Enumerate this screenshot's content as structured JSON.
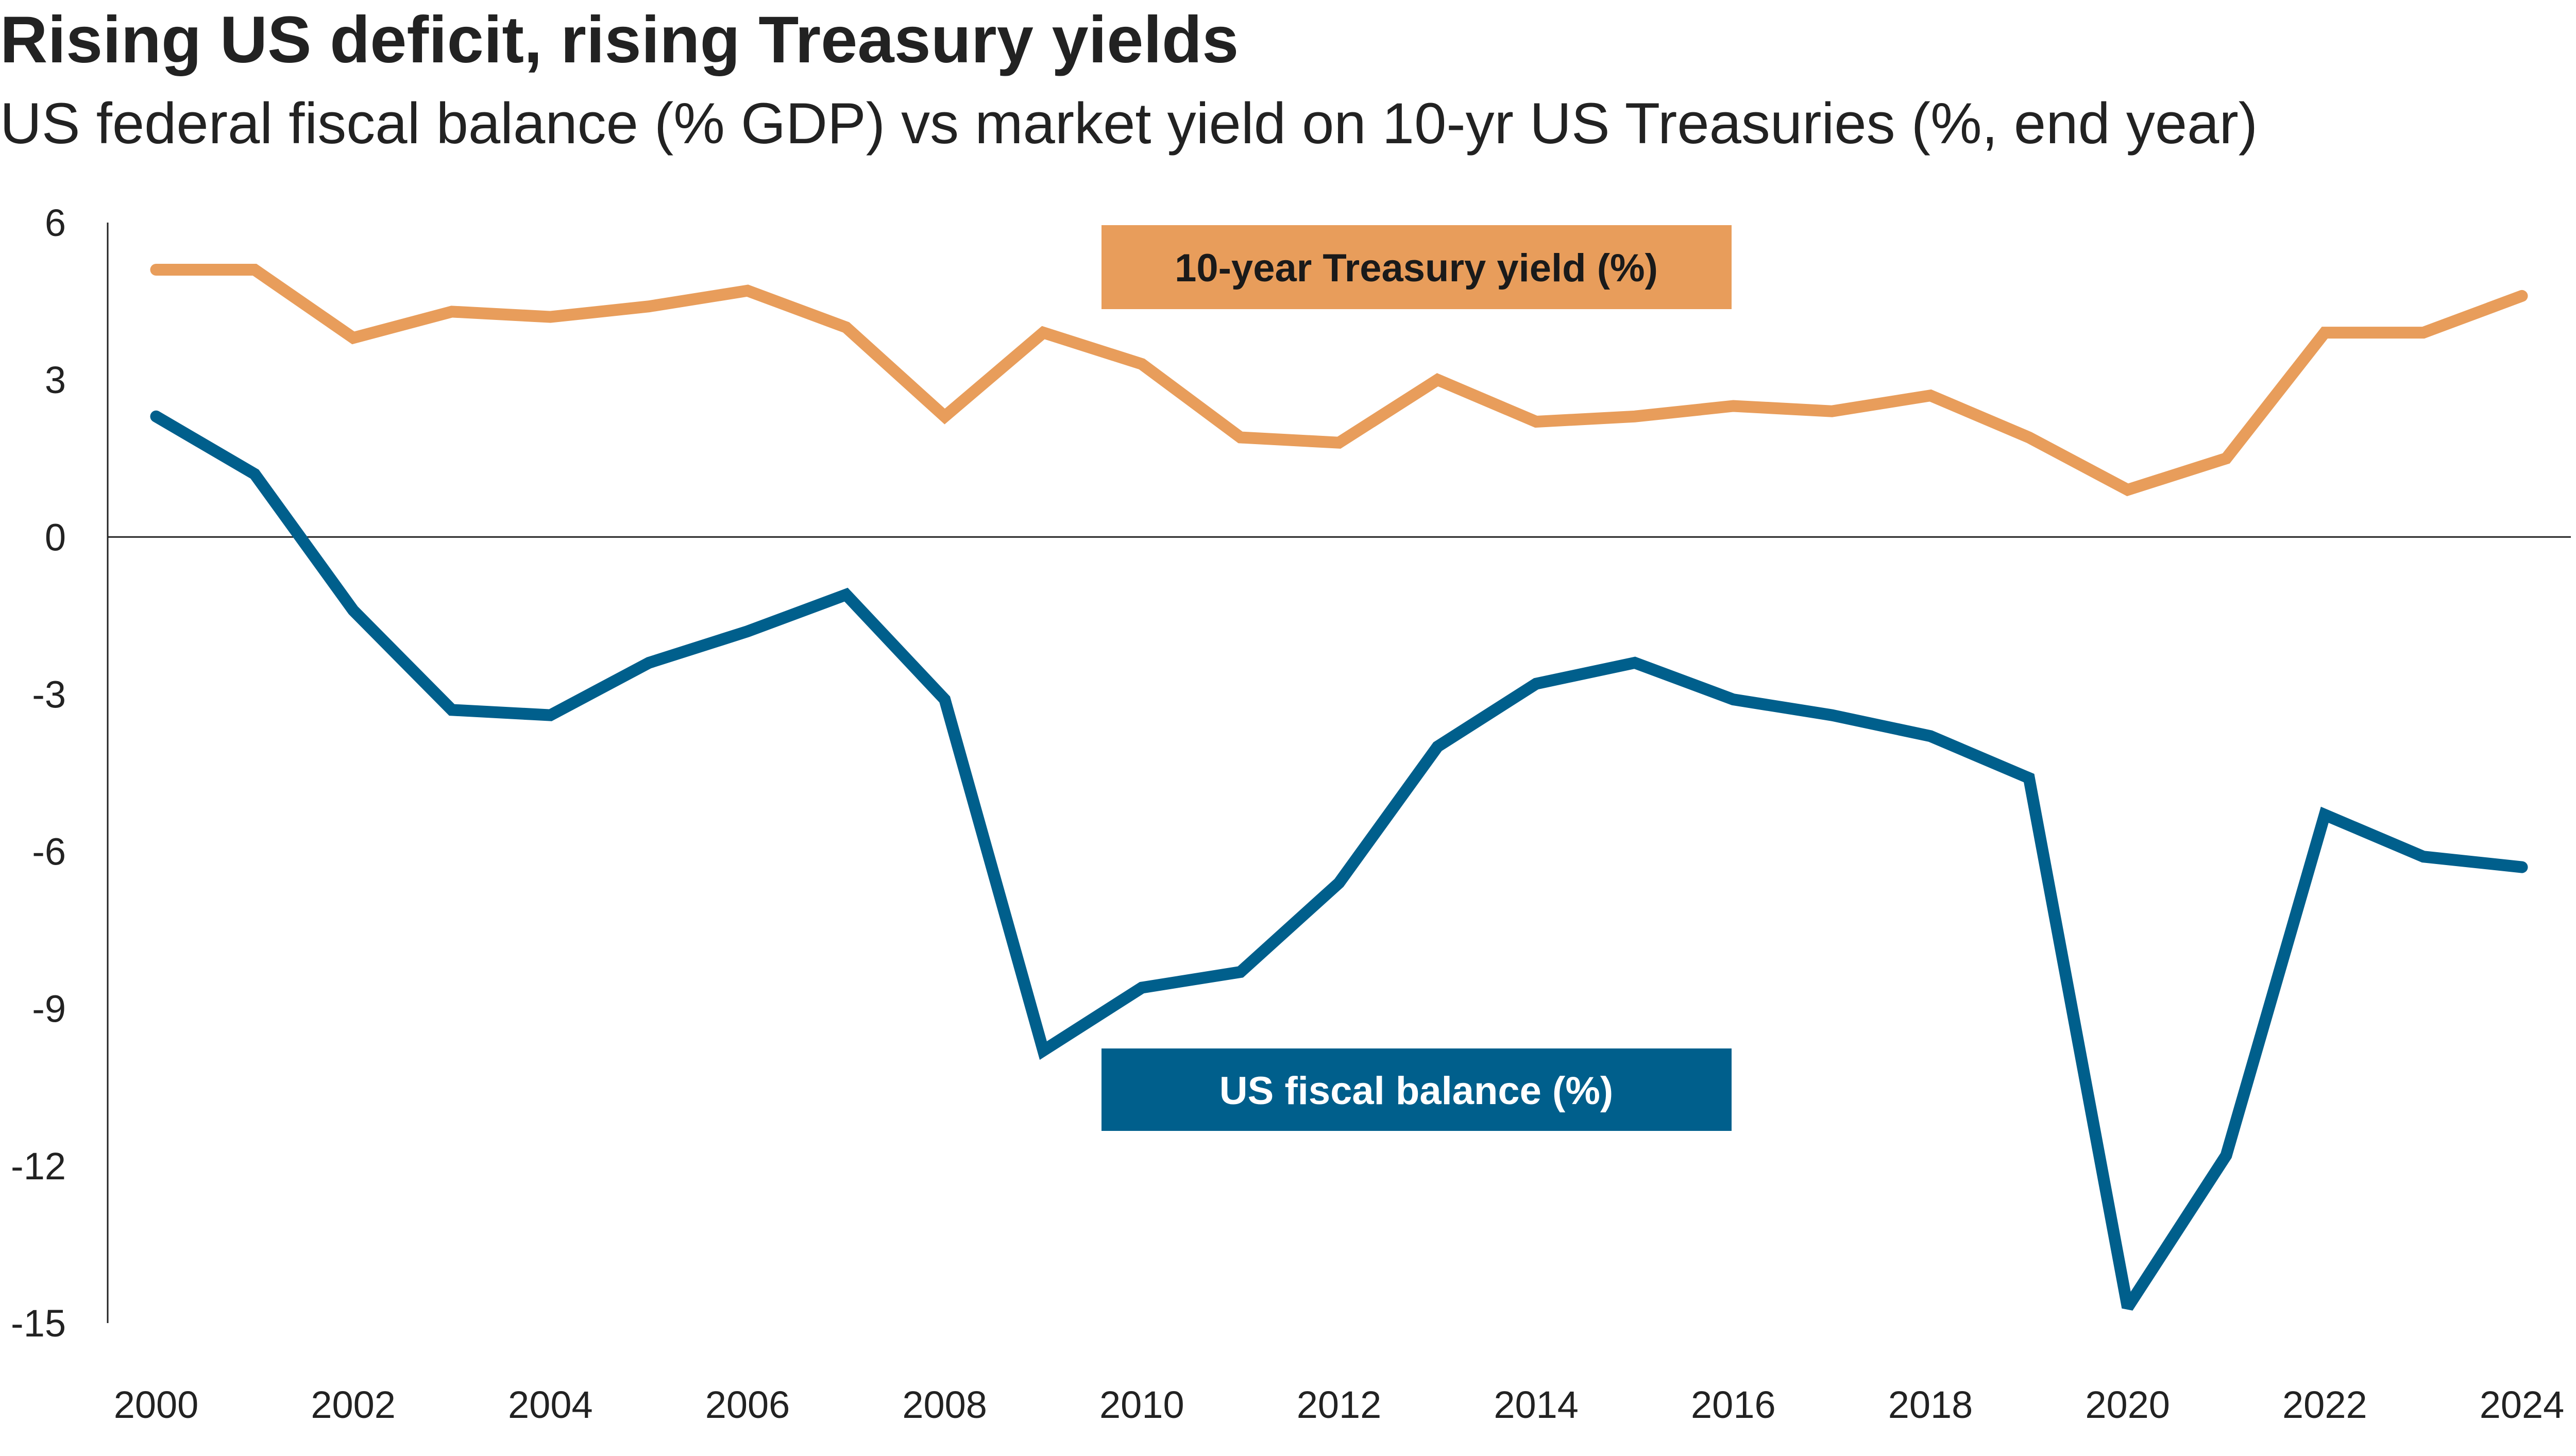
{
  "title": "Rising US deficit, rising Treasury yields",
  "subtitle": "US federal fiscal balance (% GDP) vs market yield on 10-yr US Treasuries (%, end year)",
  "chart_data": {
    "type": "line",
    "x": [
      2000,
      2001,
      2002,
      2003,
      2004,
      2005,
      2006,
      2007,
      2008,
      2009,
      2010,
      2011,
      2012,
      2013,
      2014,
      2015,
      2016,
      2017,
      2018,
      2019,
      2020,
      2021,
      2022,
      2023,
      2024
    ],
    "x_ticks": [
      "2000",
      "2002",
      "2004",
      "2006",
      "2008",
      "2010",
      "2012",
      "2014",
      "2016",
      "2018",
      "2020",
      "2022",
      "2024"
    ],
    "y_ticks": [
      "6",
      "3",
      "0",
      "-3",
      "-6",
      "-9",
      "-12",
      "-15"
    ],
    "ylim": [
      -15,
      6
    ],
    "xlim": [
      2000,
      2024
    ],
    "grid": false,
    "series": [
      {
        "name": "10-year Treasury yield (%)",
        "color": "#E89D5B",
        "values": [
          5.1,
          5.1,
          3.8,
          4.3,
          4.2,
          4.4,
          4.7,
          4.0,
          2.3,
          3.9,
          3.3,
          1.9,
          1.8,
          3.0,
          2.2,
          2.3,
          2.5,
          2.4,
          2.7,
          1.9,
          0.9,
          1.5,
          3.9,
          3.9,
          4.6
        ]
      },
      {
        "name": "US fiscal balance (%)",
        "color": "#005F8C",
        "values": [
          2.3,
          1.2,
          -1.4,
          -3.3,
          -3.4,
          -2.4,
          -1.8,
          -1.1,
          -3.1,
          -9.8,
          -8.6,
          -8.3,
          -6.6,
          -4.0,
          -2.8,
          -2.4,
          -3.1,
          -3.4,
          -3.8,
          -4.6,
          -14.7,
          -11.8,
          -5.3,
          -6.1,
          -6.3
        ]
      }
    ],
    "legend_labels": {
      "yield": "10-year Treasury yield (%)",
      "balance": "US fiscal balance (%)"
    }
  }
}
